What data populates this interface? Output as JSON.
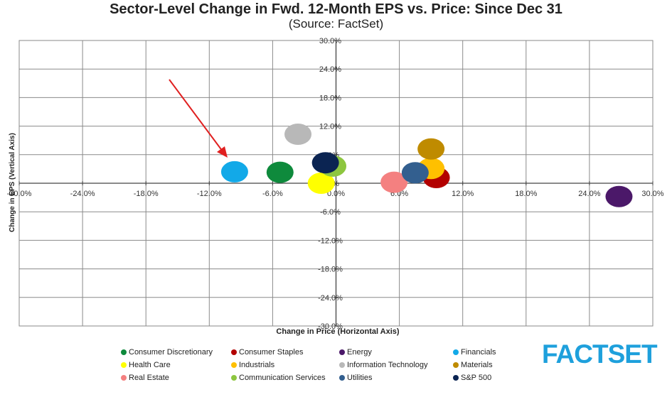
{
  "chart_data": {
    "type": "scatter",
    "title": "Sector-Level Change in Fwd. 12-Month EPS vs. Price: Since Dec 31",
    "subtitle": "(Source: FactSet)",
    "xlabel": "Change in Price (Horizontal Axis)",
    "ylabel": "Change in EPS (Vertical Axis)",
    "xlim": [
      -30,
      30
    ],
    "ylim": [
      -30,
      30
    ],
    "x_ticks": [
      "-30.0%",
      "-24.0%",
      "-18.0%",
      "-12.0%",
      "-6.0%",
      "0.0%",
      "6.0%",
      "12.0%",
      "18.0%",
      "24.0%",
      "30.0%"
    ],
    "y_ticks": [
      "-30.0%",
      "-24.0%",
      "-18.0%",
      "-12.0%",
      "-6.0%",
      "0.0%",
      "6.0%",
      "12.0%",
      "18.0%",
      "24.0%",
      "30.0%"
    ],
    "grid": true,
    "legend_position": "bottom",
    "series": [
      {
        "name": "Consumer Discretionary",
        "color": "#0e8a3c",
        "x": -5.3,
        "y": 2.3
      },
      {
        "name": "Consumer Staples",
        "color": "#b30000",
        "x": 9.5,
        "y": 1.2
      },
      {
        "name": "Energy",
        "color": "#4b1869",
        "x": 26.8,
        "y": -2.8
      },
      {
        "name": "Financials",
        "color": "#12a9e8",
        "x": -9.6,
        "y": 2.4
      },
      {
        "name": "Health Care",
        "color": "#ffff00",
        "x": -1.4,
        "y": 0.0
      },
      {
        "name": "Industrials",
        "color": "#ffc000",
        "x": 9.0,
        "y": 3.1
      },
      {
        "name": "Information Technology",
        "color": "#b8b8b8",
        "x": -3.6,
        "y": 10.3
      },
      {
        "name": "Materials",
        "color": "#bf8b00",
        "x": 9.0,
        "y": 7.2
      },
      {
        "name": "Real Estate",
        "color": "#f48080",
        "x": 5.5,
        "y": 0.2
      },
      {
        "name": "Communication Services",
        "color": "#8dc63f",
        "x": -0.3,
        "y": 3.6
      },
      {
        "name": "Utilities",
        "color": "#335f8f",
        "x": 7.5,
        "y": 2.2
      },
      {
        "name": "S&P 500",
        "color": "#0b2452",
        "x": -1.0,
        "y": 4.3
      }
    ]
  },
  "logo_text": "FACTSET",
  "logo_color": "#1ea0dc",
  "annotation_color": "#e02020"
}
